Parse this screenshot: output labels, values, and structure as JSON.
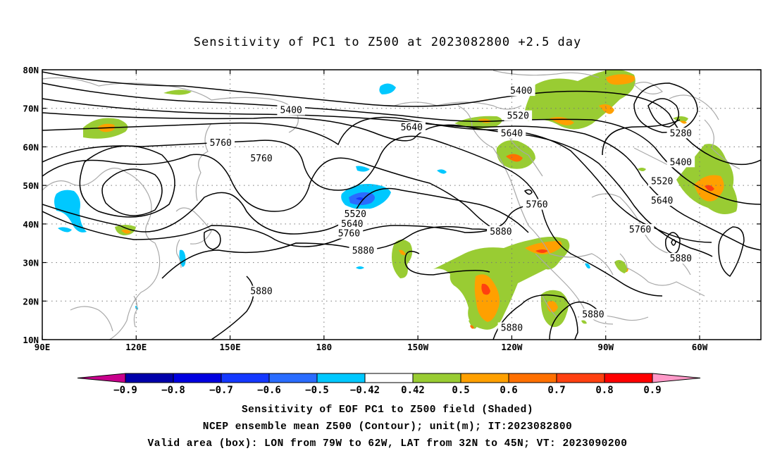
{
  "title": "Sensitivity of PC1 to Z500 at 2023082800 +2.5 day",
  "map": {
    "lat_labels": [
      "80N",
      "70N",
      "60N",
      "50N",
      "40N",
      "30N",
      "20N",
      "10N"
    ],
    "lon_labels": [
      "90E",
      "120E",
      "150E",
      "180",
      "150W",
      "120W",
      "90W",
      "60W"
    ],
    "contour_labels": [
      {
        "text": "5400",
        "lon": -190.5,
        "lat": 69.5
      },
      {
        "text": "5400",
        "lon": -117,
        "lat": 74.5
      },
      {
        "text": "5520",
        "lon": -118,
        "lat": 68
      },
      {
        "text": "5640",
        "lon": -152,
        "lat": 65
      },
      {
        "text": "5640",
        "lon": -120,
        "lat": 63.5
      },
      {
        "text": "5760",
        "lon": -213,
        "lat": 61
      },
      {
        "text": "5760",
        "lon": -200,
        "lat": 57
      },
      {
        "text": "5520",
        "lon": -170,
        "lat": 42.5
      },
      {
        "text": "5640",
        "lon": -171,
        "lat": 40
      },
      {
        "text": "5760",
        "lon": -172,
        "lat": 37.5
      },
      {
        "text": "5880",
        "lon": -167.5,
        "lat": 33
      },
      {
        "text": "5880",
        "lon": -123.5,
        "lat": 38
      },
      {
        "text": "5760",
        "lon": -112,
        "lat": 45
      },
      {
        "text": "5880",
        "lon": -200,
        "lat": 22.5
      },
      {
        "text": "5880",
        "lon": -120,
        "lat": 13
      },
      {
        "text": "5880",
        "lon": -94,
        "lat": 16.5
      },
      {
        "text": "5280",
        "lon": -66,
        "lat": 63.5
      },
      {
        "text": "5400",
        "lon": -66,
        "lat": 56
      },
      {
        "text": "5520",
        "lon": -72,
        "lat": 51
      },
      {
        "text": "5640",
        "lon": -72,
        "lat": 46
      },
      {
        "text": "5760",
        "lon": -79,
        "lat": 38.5
      },
      {
        "text": "5880",
        "lon": -66,
        "lat": 31
      }
    ],
    "valid_box": {
      "lon_min": -79,
      "lon_max": -62,
      "lat_min": 32,
      "lat_max": 45
    }
  },
  "colorbar": {
    "labels": [
      "-0.9",
      "-0.8",
      "-0.7",
      "-0.6",
      "-0.5",
      "-0.42",
      "0.42",
      "0.5",
      "0.6",
      "0.7",
      "0.8",
      "0.9"
    ],
    "colors": {
      "low_tip": "#c8008c",
      "steps": [
        "#0000aa",
        "#0000e0",
        "#1438ff",
        "#2a6cff",
        "#00c8ff",
        "#ffffff",
        "#99cc33",
        "#ffa000",
        "#ff7000",
        "#ff4010",
        "#ff0000"
      ],
      "high_tip": "#ff99c8"
    }
  },
  "caption": [
    "Sensitivity of EOF PC1 to Z500 field (Shaded)",
    "NCEP ensemble mean Z500 (Contour); unit(m); IT:2023082800",
    "Valid area (box): LON from 79W to 62W, LAT from 32N to 45N; VT: 2023090200"
  ]
}
